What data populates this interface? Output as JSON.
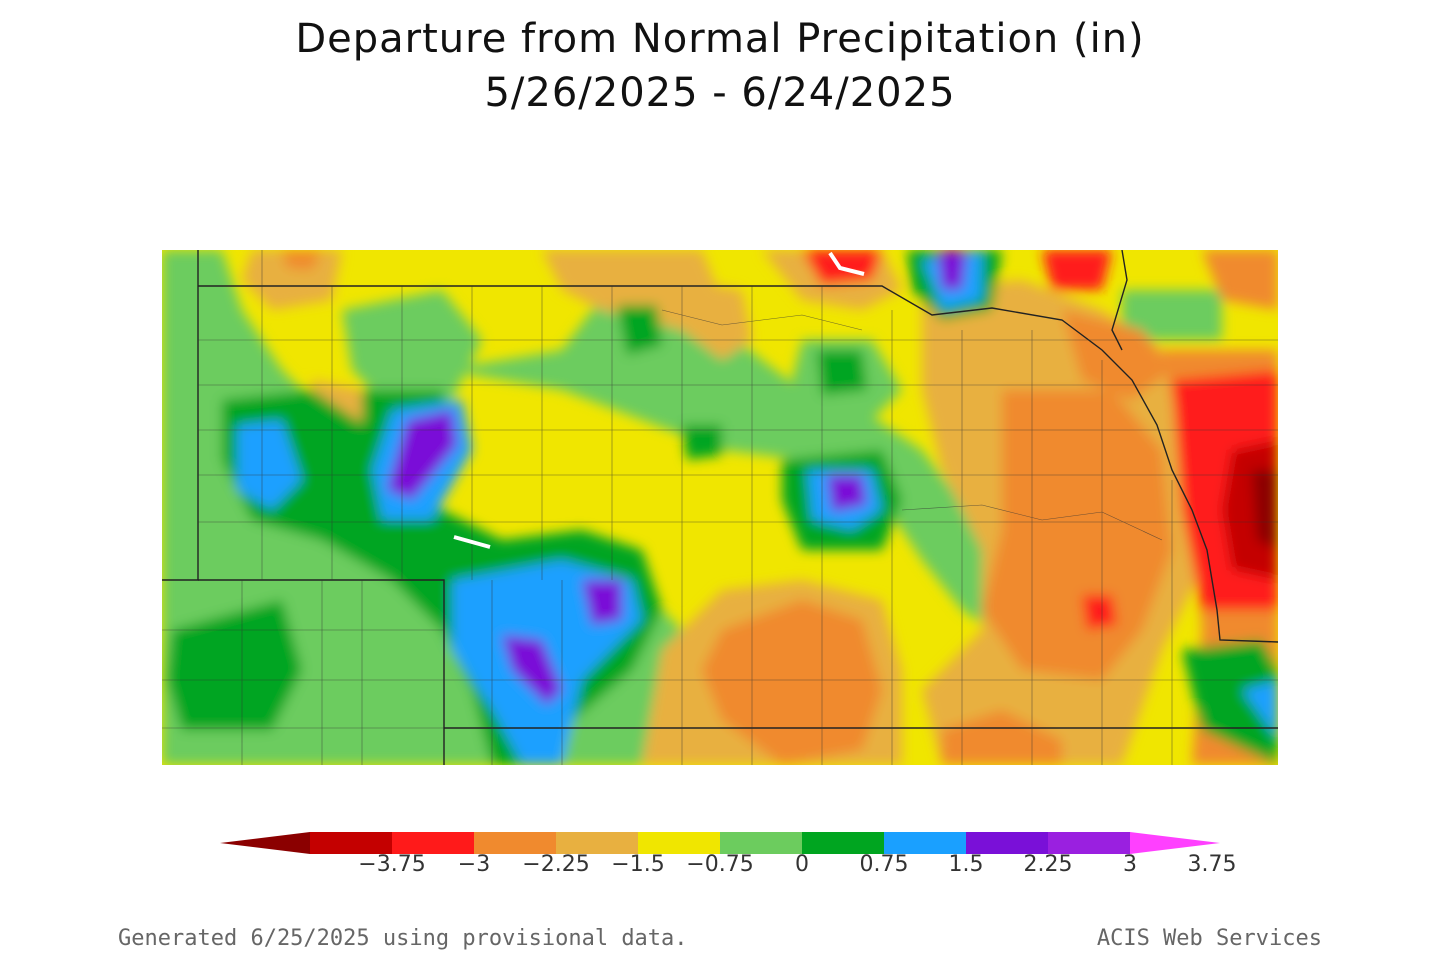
{
  "title": {
    "line1": "Departure from Normal Precipitation (in)",
    "line2": "5/26/2025 - 6/24/2025"
  },
  "legend": {
    "ticks": [
      "-3.75",
      "-3",
      "-2.25",
      "-1.5",
      "-0.75",
      "0",
      "0.75",
      "1.5",
      "2.25",
      "3",
      "3.75"
    ],
    "colors": [
      "#8b0000",
      "#c40000",
      "#ff1a1a",
      "#f08a2e",
      "#e8b040",
      "#f0e600",
      "#6ccc5e",
      "#00a520",
      "#1aa0ff",
      "#7a10d8",
      "#9a20e0",
      "#ff40ff"
    ]
  },
  "footer": {
    "left": "Generated 6/25/2025 using provisional data.",
    "right": "ACIS Web Services"
  }
}
